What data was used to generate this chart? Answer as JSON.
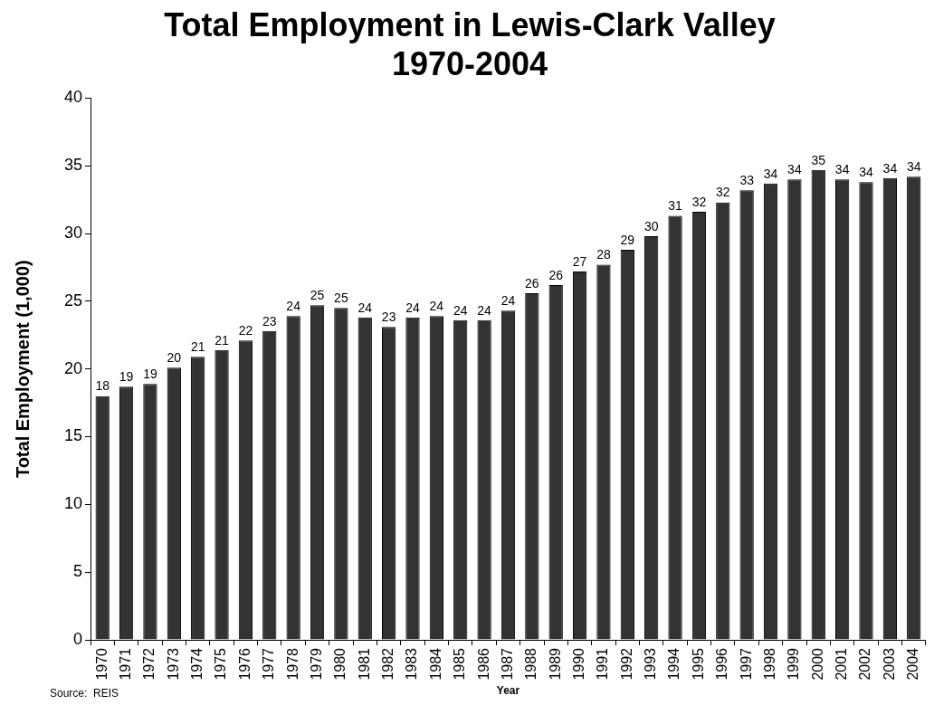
{
  "chart_data": {
    "type": "bar",
    "title": "Total Employment in Lewis-Clark Valley\n1970-2004",
    "xlabel": "Year",
    "ylabel": "Total Employment (1,000)",
    "categories": [
      "1970",
      "1971",
      "1972",
      "1973",
      "1974",
      "1975",
      "1976",
      "1977",
      "1978",
      "1979",
      "1980",
      "1981",
      "1982",
      "1983",
      "1984",
      "1985",
      "1986",
      "1987",
      "1988",
      "1989",
      "1990",
      "1991",
      "1992",
      "1993",
      "1994",
      "1995",
      "1996",
      "1997",
      "1998",
      "1999",
      "2000",
      "2001",
      "2002",
      "2003",
      "2004"
    ],
    "values": [
      18.0,
      18.7,
      18.9,
      20.1,
      20.9,
      21.4,
      22.1,
      22.8,
      23.9,
      24.7,
      24.5,
      23.8,
      23.1,
      23.8,
      23.9,
      23.6,
      23.6,
      24.3,
      25.6,
      26.2,
      27.2,
      27.7,
      28.8,
      29.8,
      31.3,
      31.6,
      32.3,
      33.2,
      33.7,
      34.0,
      34.7,
      34.0,
      33.8,
      34.1,
      34.2
    ],
    "value_labels": [
      "18",
      "19",
      "19",
      "20",
      "21",
      "21",
      "22",
      "23",
      "24",
      "25",
      "25",
      "24",
      "23",
      "24",
      "24",
      "24",
      "24",
      "24",
      "26",
      "26",
      "27",
      "28",
      "29",
      "30",
      "31",
      "32",
      "32",
      "33",
      "34",
      "34",
      "35",
      "34",
      "34",
      "34",
      "34"
    ],
    "color": "#333333",
    "ylim": [
      0,
      40
    ],
    "yticks": [
      0,
      5,
      10,
      15,
      20,
      25,
      30,
      35,
      40
    ],
    "grid": false,
    "legend": false,
    "annotations": [
      "Source:  REIS"
    ]
  }
}
